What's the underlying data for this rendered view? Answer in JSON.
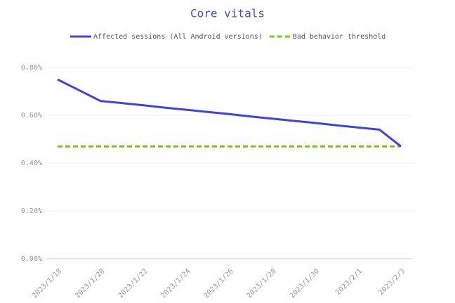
{
  "chart_data": {
    "type": "line",
    "title": "Core vitals",
    "categories": [
      "2023/1/18",
      null,
      "2023/1/20",
      null,
      "2023/1/22",
      null,
      "2023/1/24",
      null,
      "2023/1/26",
      null,
      "2023/1/28",
      null,
      "2023/1/30",
      null,
      "2023/2/1",
      null,
      "2023/2/3"
    ],
    "series": [
      {
        "name": "Affected sessions (All Android versions)",
        "color": "#3d45e0",
        "dash": false,
        "values": [
          0.75,
          0.705,
          0.66,
          0.651,
          0.642,
          0.632,
          0.623,
          0.614,
          0.605,
          0.595,
          0.586,
          0.577,
          0.568,
          0.558,
          0.549,
          0.54,
          0.47
        ]
      },
      {
        "name": "Bad behavior threshold",
        "color": "#7cbf1f",
        "dash": true,
        "values": [
          0.47,
          0.47,
          0.47,
          0.47,
          0.47,
          0.47,
          0.47,
          0.47,
          0.47,
          0.47,
          0.47,
          0.47,
          0.47,
          0.47,
          0.47,
          0.47,
          0.47
        ]
      }
    ],
    "ylim": [
      0,
      0.8
    ],
    "yticks": [
      {
        "value": 0,
        "label": "0.00%"
      },
      {
        "value": 0.2,
        "label": "0.20%"
      },
      {
        "value": 0.4,
        "label": "0.40%"
      },
      {
        "value": 0.6,
        "label": "0.60%"
      },
      {
        "value": 0.8,
        "label": "0.80%"
      }
    ],
    "grid": true,
    "legend": "top"
  }
}
